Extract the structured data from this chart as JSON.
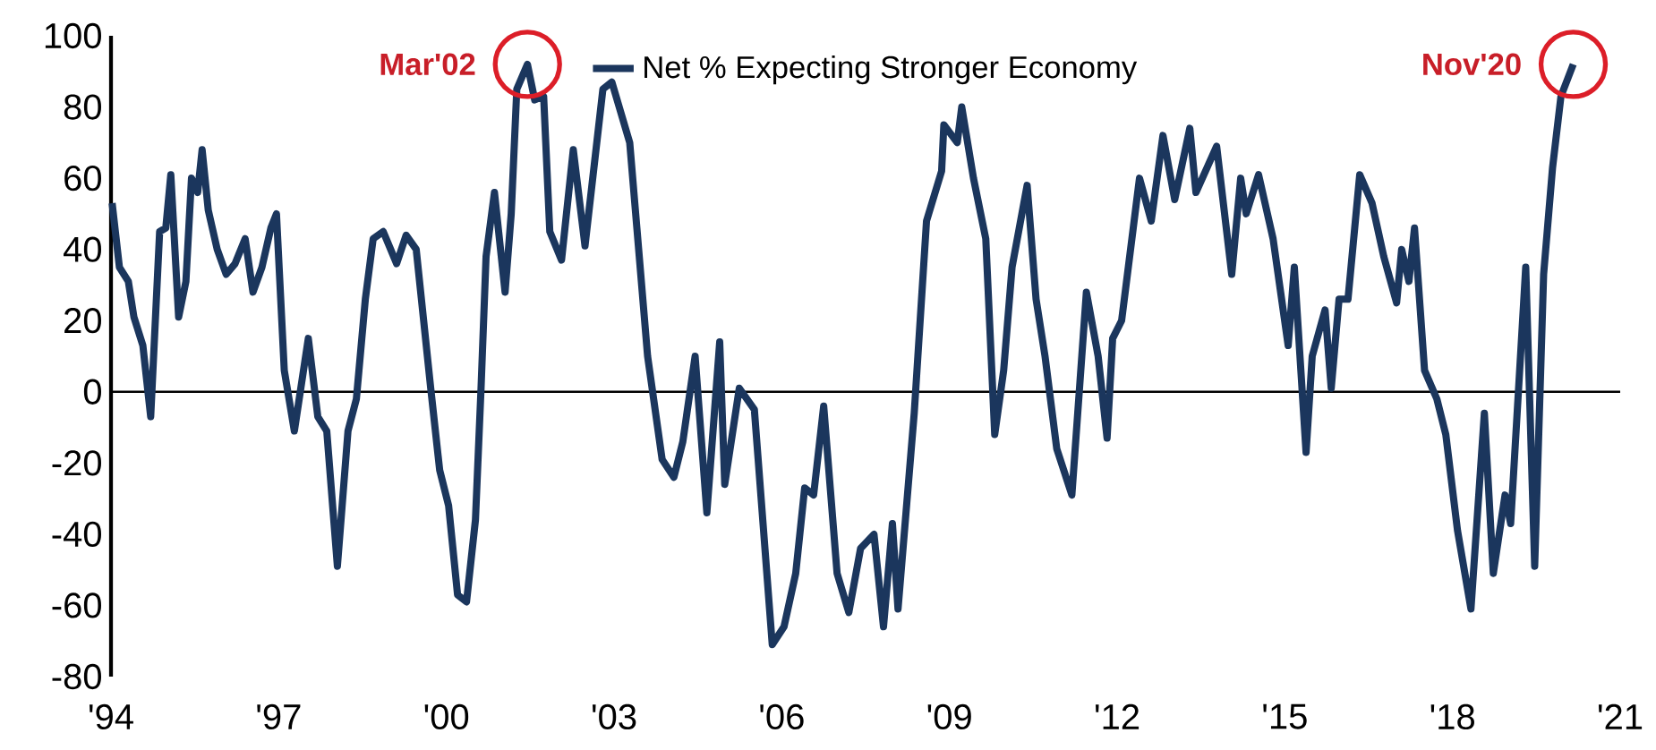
{
  "chart_data": {
    "type": "line",
    "xlim": [
      1994,
      2021
    ],
    "ylim": [
      -80,
      100
    ],
    "xticks": [
      {
        "value": 1994,
        "label": "'94"
      },
      {
        "value": 1997,
        "label": "'97"
      },
      {
        "value": 2000,
        "label": "'00"
      },
      {
        "value": 2003,
        "label": "'03"
      },
      {
        "value": 2006,
        "label": "'06"
      },
      {
        "value": 2009,
        "label": "'09"
      },
      {
        "value": 2012,
        "label": "'12"
      },
      {
        "value": 2015,
        "label": "'15"
      },
      {
        "value": 2018,
        "label": "'18"
      },
      {
        "value": 2021,
        "label": "'21"
      }
    ],
    "yticks": [
      -80,
      -60,
      -40,
      -20,
      0,
      20,
      40,
      60,
      80,
      100
    ],
    "grid": false,
    "legend": "top",
    "marker": "none",
    "line_style": "solid",
    "ref_lines": [
      {
        "axis": "y",
        "value": 0,
        "color": "#000000"
      }
    ],
    "annotations": [
      {
        "text": "Mar'02",
        "x": 2001.45,
        "y": 92
      },
      {
        "text": "Nov'20",
        "x": 2020.16,
        "y": 92
      }
    ],
    "series": [
      {
        "name": "Net % Expecting Stronger Economy",
        "color": "#1b365d",
        "x": [
          1994.02,
          1994.15,
          1994.31,
          1994.41,
          1994.57,
          1994.71,
          1994.87,
          1994.98,
          1995.07,
          1995.21,
          1995.34,
          1995.44,
          1995.55,
          1995.63,
          1995.74,
          1995.9,
          1996.06,
          1996.22,
          1996.4,
          1996.54,
          1996.7,
          1996.86,
          1996.96,
          1997.1,
          1997.28,
          1997.53,
          1997.7,
          1997.86,
          1998.05,
          1998.24,
          1998.39,
          1998.55,
          1998.69,
          1998.87,
          1999.11,
          1999.28,
          1999.46,
          1999.72,
          1999.88,
          2000.04,
          2000.2,
          2000.36,
          2000.52,
          2000.62,
          2000.71,
          2000.86,
          2001.05,
          2001.16,
          2001.26,
          2001.45,
          2001.58,
          2001.74,
          2001.85,
          2002.06,
          2002.27,
          2002.48,
          2002.8,
          2002.96,
          2003.28,
          2003.6,
          2003.86,
          2004.07,
          2004.23,
          2004.45,
          2004.66,
          2004.89,
          2004.98,
          2005.24,
          2005.51,
          2005.83,
          2006.04,
          2006.25,
          2006.41,
          2006.57,
          2006.75,
          2006.99,
          2007.2,
          2007.41,
          2007.65,
          2007.82,
          2007.98,
          2008.08,
          2008.37,
          2008.59,
          2008.86,
          2008.9,
          2009.14,
          2009.22,
          2009.43,
          2009.65,
          2009.81,
          2009.97,
          2010.12,
          2010.39,
          2010.55,
          2010.71,
          2010.92,
          2011.19,
          2011.45,
          2011.66,
          2011.82,
          2011.92,
          2012.08,
          2012.24,
          2012.4,
          2012.61,
          2012.82,
          2013.03,
          2013.3,
          2013.41,
          2013.78,
          2014.05,
          2014.21,
          2014.31,
          2014.53,
          2014.79,
          2015.06,
          2015.17,
          2015.38,
          2015.49,
          2015.72,
          2015.83,
          2015.97,
          2016.13,
          2016.34,
          2016.56,
          2016.77,
          2017.0,
          2017.09,
          2017.22,
          2017.32,
          2017.5,
          2017.72,
          2017.88,
          2018.09,
          2018.33,
          2018.57,
          2018.73,
          2018.94,
          2019.04,
          2019.31,
          2019.47,
          2019.63,
          2019.79,
          2019.94,
          2020.16
        ],
        "values": [
          53,
          35,
          31,
          21,
          13,
          -7,
          45,
          46,
          61,
          21,
          31,
          60,
          56,
          68,
          51,
          40,
          33,
          36,
          43,
          28,
          35,
          46,
          50,
          6,
          -11,
          15,
          -7,
          -11,
          -49,
          -11,
          -2,
          26,
          43,
          45,
          36,
          44,
          40,
          1,
          -22,
          -32,
          -57,
          -59,
          -36,
          1,
          38,
          56,
          28,
          50,
          85,
          92,
          82,
          83,
          45,
          37,
          68,
          41,
          85,
          87,
          70,
          10,
          -19,
          -24,
          -14,
          10,
          -34,
          14,
          -26,
          1,
          -5,
          -71,
          -66,
          -51,
          -27,
          -29,
          -4,
          -51,
          -62,
          -44,
          -40,
          -66,
          -37,
          -61,
          -6,
          48,
          62,
          75,
          70,
          80,
          60,
          43,
          -12,
          6,
          35,
          58,
          26,
          10,
          -16,
          -29,
          28,
          10,
          -13,
          15,
          20,
          40,
          60,
          48,
          72,
          54,
          74,
          56,
          69,
          33,
          60,
          50,
          61,
          43,
          13,
          35,
          -17,
          10,
          23,
          1,
          26,
          26,
          61,
          53,
          38,
          25,
          40,
          31,
          46,
          6,
          -2,
          -12,
          -39,
          -61,
          -6,
          -51,
          -29,
          -37,
          35,
          -49,
          33,
          63,
          83,
          92
        ]
      }
    ]
  }
}
